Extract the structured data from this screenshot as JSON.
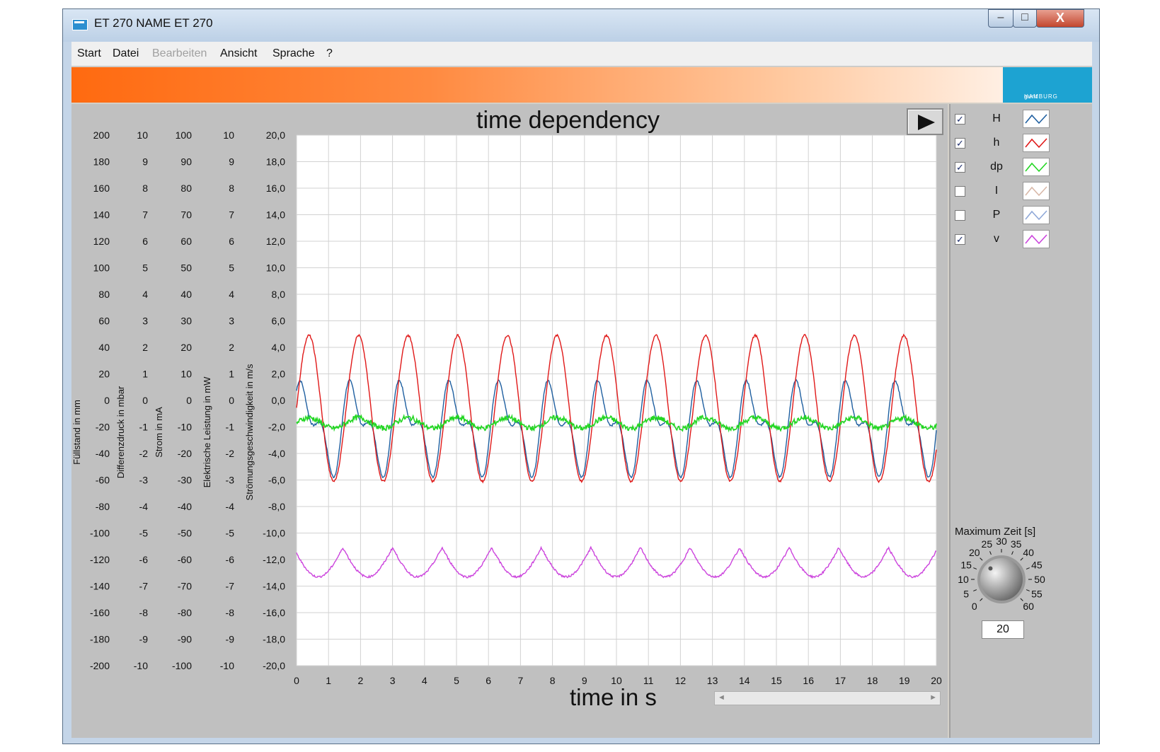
{
  "window": {
    "title": "ET 270 NAME ET 270",
    "minimize_symbol": "‒",
    "maximize_symbol": "□",
    "close_symbol": "X"
  },
  "menu": [
    {
      "label": "Start",
      "enabled": true
    },
    {
      "label": "Datei",
      "enabled": true
    },
    {
      "label": "Bearbeiten",
      "enabled": false
    },
    {
      "label": "Ansicht",
      "enabled": true
    },
    {
      "label": "Sprache",
      "enabled": true
    },
    {
      "label": "?",
      "enabled": true
    }
  ],
  "logo": {
    "text": "gunt",
    "subtext": "HAMBURG"
  },
  "chart_data": {
    "type": "line",
    "title": "time dependency",
    "xlabel": "time in s",
    "xlim": [
      0,
      20
    ],
    "x_ticks": [
      "0",
      "1",
      "2",
      "3",
      "4",
      "5",
      "6",
      "7",
      "8",
      "9",
      "10",
      "11",
      "12",
      "13",
      "14",
      "15",
      "16",
      "17",
      "18",
      "19",
      "20"
    ],
    "grid": true,
    "y_axes": [
      {
        "label": "Füllstand  in mm",
        "ticks": [
          "200",
          "180",
          "160",
          "140",
          "120",
          "100",
          "80",
          "60",
          "40",
          "20",
          "0",
          "-20",
          "-40",
          "-60",
          "-80",
          "-100",
          "-120",
          "-140",
          "-160",
          "-180",
          "-200"
        ],
        "range": [
          -200,
          200
        ]
      },
      {
        "label": "Differenzdruck  in mbar",
        "ticks": [
          "10",
          "9",
          "8",
          "7",
          "6",
          "5",
          "4",
          "3",
          "2",
          "1",
          "0",
          "-1",
          "-2",
          "-3",
          "-4",
          "-5",
          "-6",
          "-7",
          "-8",
          "-9",
          "-10"
        ],
        "range": [
          -10,
          10
        ]
      },
      {
        "label": "Strom  in mA",
        "ticks": [
          "100",
          "90",
          "80",
          "70",
          "60",
          "50",
          "40",
          "30",
          "20",
          "10",
          "0",
          "-10",
          "-20",
          "-30",
          "-40",
          "-50",
          "-60",
          "-70",
          "-80",
          "-90",
          "-100"
        ],
        "range": [
          -100,
          100
        ]
      },
      {
        "label": "Elektrische Leistung in mW",
        "ticks": [
          "10",
          "9",
          "8",
          "7",
          "6",
          "5",
          "4",
          "3",
          "2",
          "1",
          "0",
          "-1",
          "-2",
          "-3",
          "-4",
          "-5",
          "-6",
          "-7",
          "-8",
          "-9",
          "-10"
        ],
        "range": [
          -10,
          10
        ]
      },
      {
        "label": "Strömungsgeschwindigkeit in m/s",
        "ticks": [
          "20,0",
          "18,0",
          "16,0",
          "14,0",
          "12,0",
          "10,0",
          "8,0",
          "6,0",
          "4,0",
          "2,0",
          "0,0",
          "-2,0",
          "-4,0",
          "-6,0",
          "-8,0",
          "-10,0",
          "-12,0",
          "-14,0",
          "-16,0",
          "-18,0",
          "-20,0"
        ],
        "range": [
          -20,
          20
        ]
      }
    ],
    "series": [
      {
        "name": "H",
        "color": "#1f5fa0",
        "visible": true,
        "period_s": 1.55,
        "offset_mm": -20,
        "amplitude_mm": 35,
        "harmonic": true
      },
      {
        "name": "h",
        "color": "#e01818",
        "visible": true,
        "period_s": 1.55,
        "offset_mm": -6,
        "amplitude_mm": 55,
        "harmonic": false
      },
      {
        "name": "dp",
        "color": "#22d622",
        "visible": true,
        "period_s": 1.55,
        "offset_mm": -17,
        "amplitude_mm": 4,
        "harmonic": false
      },
      {
        "name": "I",
        "color": "#d8b8a8",
        "visible": false
      },
      {
        "name": "P",
        "color": "#8fa8d8",
        "visible": false
      },
      {
        "name": "v",
        "color": "#cc44dd",
        "visible": true,
        "period_s": 1.55,
        "offset_mm": -122,
        "amplitude_mm": 11,
        "harmonic": false
      }
    ]
  },
  "legend": [
    {
      "name": "H",
      "checked": true,
      "color": "#1f5fa0"
    },
    {
      "name": "h",
      "checked": true,
      "color": "#e01818"
    },
    {
      "name": "dp",
      "checked": true,
      "color": "#22d622"
    },
    {
      "name": "I",
      "checked": false,
      "color": "#d8b8a8"
    },
    {
      "name": "P",
      "checked": false,
      "color": "#8fa8d8"
    },
    {
      "name": "v",
      "checked": true,
      "color": "#cc44dd"
    }
  ],
  "knob": {
    "title": "Maximum Zeit [s]",
    "value": "20",
    "scale": [
      "0",
      "5",
      "10",
      "15",
      "20",
      "25",
      "30",
      "35",
      "40",
      "45",
      "50",
      "55",
      "60"
    ],
    "min": 0,
    "max": 60,
    "current": 20
  },
  "scrollbar": {
    "left_arrow": "◄",
    "right_arrow": "►"
  }
}
